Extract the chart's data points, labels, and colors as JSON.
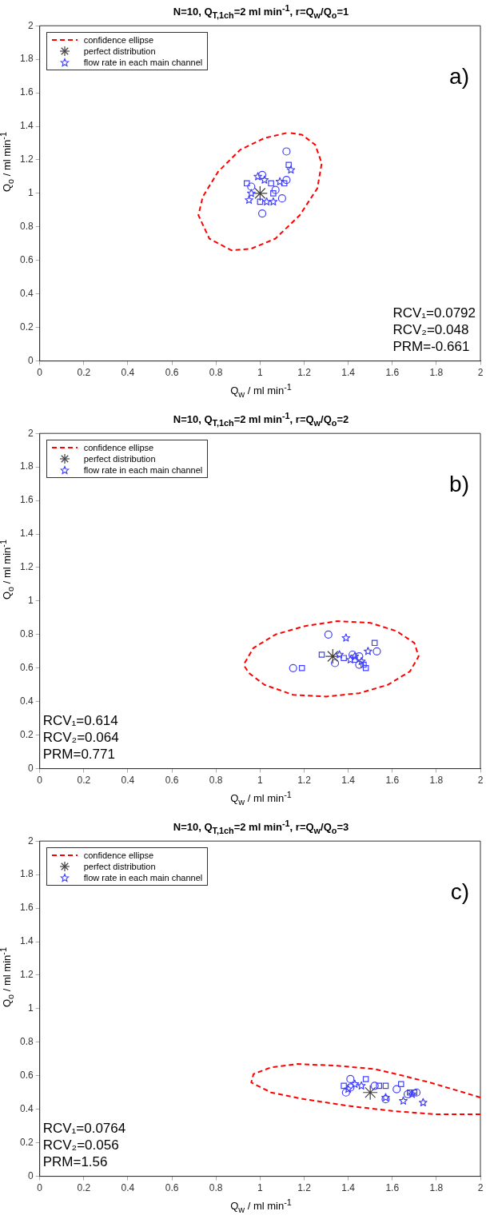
{
  "chart_data": [
    {
      "type": "scatter",
      "title": "N=10, Q$_{T,1ch}$=2 ml min$^{-1}$, r=Q$_{w}$/Q$_{o}$=1",
      "xlabel": "Q$_{w}$ / ml min$^{-1}$",
      "ylabel": "Q$_{o}$ / ml min$^{-1}$",
      "xlim": [
        0,
        2
      ],
      "ylim": [
        0,
        2
      ],
      "xticks": [
        0,
        0.2,
        0.4,
        0.6,
        0.8,
        1,
        1.2,
        1.4,
        1.6,
        1.8,
        2
      ],
      "yticks": [
        0,
        0.2,
        0.4,
        0.6,
        0.8,
        1,
        1.2,
        1.4,
        1.6,
        1.8,
        2
      ],
      "grid": false,
      "legend": "top left",
      "annotations": [
        "a)",
        "RCV₁=0.0792",
        "RCV₂=0.048",
        "PRM=-0.661"
      ],
      "series": [
        {
          "name": "confidence ellipse",
          "type": "line",
          "line_style": "dashed",
          "marker": "none",
          "color": "#ff0000",
          "x": [
            1.12,
            1.02,
            0.91,
            0.81,
            0.74,
            0.72,
            0.77,
            0.87,
            0.96,
            1.07,
            1.18,
            1.26,
            1.28,
            1.25,
            1.19,
            1.14
          ],
          "values": [
            1.36,
            1.33,
            1.26,
            1.13,
            0.98,
            0.87,
            0.73,
            0.66,
            0.67,
            0.73,
            0.87,
            1.03,
            1.18,
            1.29,
            1.35,
            1.36
          ]
        },
        {
          "name": "perfect distribution",
          "type": "scatter",
          "marker": "cross",
          "color": "#404040",
          "x": [
            1
          ],
          "values": [
            1
          ]
        },
        {
          "name": "flow rate in each main channel",
          "type": "scatter",
          "marker": "star",
          "color": "#4040ff",
          "x": [
            1.14,
            1.09,
            0.95,
            0.99,
            1.03,
            1.06,
            0.96,
            1.02
          ],
          "values": [
            1.14,
            1.07,
            0.96,
            1.1,
            0.95,
            0.95,
            1,
            1.08
          ]
        },
        {
          "type": "scatter",
          "marker": "circle",
          "color": "#4040ff",
          "x": [
            1.12,
            1.01,
            1.12,
            1.1,
            1.01,
            0.96,
            1.07
          ],
          "values": [
            1.25,
            0.88,
            1.08,
            0.97,
            1.11,
            1.04,
            1.02
          ]
        },
        {
          "type": "scatter",
          "marker": "square",
          "color": "#4040ff",
          "x": [
            1.13,
            0.94,
            1.05,
            1,
            1.11,
            1.06
          ],
          "values": [
            1.17,
            1.06,
            1.06,
            0.95,
            1.06,
            1
          ]
        }
      ]
    },
    {
      "type": "scatter",
      "title": "N=10, Q$_{T,1ch}$=2 ml min$^{-1}$, r=Q$_{w}$/Q$_{o}$=2",
      "xlabel": "Q$_{w}$ / ml min$^{-1}$",
      "ylabel": "Q$_{o}$ / ml min$^{-1}$",
      "xlim": [
        0,
        2
      ],
      "ylim": [
        0,
        2
      ],
      "xticks": [
        0,
        0.2,
        0.4,
        0.6,
        0.8,
        1,
        1.2,
        1.4,
        1.6,
        1.8,
        2
      ],
      "yticks": [
        0,
        0.2,
        0.4,
        0.6,
        0.8,
        1,
        1.2,
        1.4,
        1.6,
        1.8,
        2
      ],
      "grid": false,
      "legend": "top left",
      "annotations": [
        "b)",
        "RCV₁=0.614",
        "RCV₂=0.064",
        "PRM=0.771"
      ],
      "series": [
        {
          "name": "confidence ellipse",
          "type": "line",
          "line_style": "dashed",
          "marker": "none",
          "color": "#ff0000",
          "x": [
            0.93,
            0.97,
            1.07,
            1.2,
            1.35,
            1.5,
            1.62,
            1.7,
            1.72,
            1.68,
            1.58,
            1.45,
            1.3,
            1.15,
            1.02,
            0.95,
            0.93
          ],
          "values": [
            0.63,
            0.72,
            0.8,
            0.85,
            0.88,
            0.87,
            0.82,
            0.75,
            0.67,
            0.58,
            0.5,
            0.45,
            0.43,
            0.44,
            0.5,
            0.57,
            0.61
          ]
        },
        {
          "name": "perfect distribution",
          "type": "scatter",
          "marker": "cross",
          "color": "#404040",
          "x": [
            1.33
          ],
          "values": [
            0.67
          ]
        },
        {
          "name": "flow rate in each main channel",
          "type": "scatter",
          "marker": "star",
          "color": "#4040ff",
          "x": [
            1.39,
            1.49,
            1.36,
            1.41,
            1.46,
            1.43
          ],
          "values": [
            0.78,
            0.7,
            0.68,
            0.65,
            0.64,
            0.67
          ]
        },
        {
          "type": "scatter",
          "marker": "circle",
          "color": "#4040ff",
          "x": [
            1.31,
            1.53,
            1.15,
            1.42,
            1.45,
            1.45,
            1.34
          ],
          "values": [
            0.8,
            0.7,
            0.6,
            0.68,
            0.67,
            0.62,
            0.63
          ]
        },
        {
          "type": "scatter",
          "marker": "square",
          "color": "#4040ff",
          "x": [
            1.52,
            1.28,
            1.19,
            1.43,
            1.47,
            1.48,
            1.38
          ],
          "values": [
            0.75,
            0.68,
            0.6,
            0.65,
            0.62,
            0.6,
            0.66
          ]
        }
      ]
    },
    {
      "type": "scatter",
      "title": "N=10, Q$_{T,1ch}$=2 ml min$^{-1}$, r=Q$_{w}$/Q$_{o}$=3",
      "xlabel": "Q$_{w}$ / ml min$^{-1}$",
      "ylabel": "Q$_{o}$ / ml min$^{-1}$",
      "xlim": [
        0,
        2
      ],
      "ylim": [
        0,
        2
      ],
      "xticks": [
        0,
        0.2,
        0.4,
        0.6,
        0.8,
        1,
        1.2,
        1.4,
        1.6,
        1.8,
        2
      ],
      "yticks": [
        0,
        0.2,
        0.4,
        0.6,
        0.8,
        1,
        1.2,
        1.4,
        1.6,
        1.8,
        2
      ],
      "grid": false,
      "legend": "top left",
      "annotations": [
        "c)",
        "RCV₁=0.0764",
        "RCV₂=0.056",
        "PRM=1.56"
      ],
      "series": [
        {
          "name": "confidence ellipse",
          "type": "line",
          "line_style": "dashed",
          "marker": "none",
          "color": "#ff0000",
          "x": [
            2,
            1.8,
            1.6,
            1.4,
            1.2,
            1.05,
            0.96,
            0.97,
            1.05,
            1.17,
            1.35,
            1.52,
            1.65,
            1.77,
            1.9,
            2
          ],
          "values": [
            0.37,
            0.37,
            0.39,
            0.42,
            0.46,
            0.5,
            0.56,
            0.61,
            0.65,
            0.67,
            0.66,
            0.64,
            0.6,
            0.56,
            0.51,
            0.47
          ]
        },
        {
          "name": "perfect distribution",
          "type": "scatter",
          "marker": "cross",
          "color": "#404040",
          "x": [
            1.5
          ],
          "values": [
            0.5
          ]
        },
        {
          "name": "flow rate in each main channel",
          "type": "scatter",
          "marker": "star",
          "color": "#4040ff",
          "x": [
            1.46,
            1.57,
            1.65,
            1.74,
            1.4,
            1.43,
            1.69
          ],
          "values": [
            0.54,
            0.47,
            0.45,
            0.44,
            0.52,
            0.55,
            0.49
          ]
        },
        {
          "type": "scatter",
          "marker": "circle",
          "color": "#4040ff",
          "x": [
            1.41,
            1.39,
            1.41,
            1.52,
            1.62,
            1.71,
            1.57,
            1.67
          ],
          "values": [
            0.58,
            0.5,
            0.53,
            0.54,
            0.52,
            0.5,
            0.46,
            0.49
          ]
        },
        {
          "type": "scatter",
          "marker": "square",
          "color": "#4040ff",
          "x": [
            1.48,
            1.38,
            1.54,
            1.57,
            1.64,
            1.68,
            1.7
          ],
          "values": [
            0.58,
            0.54,
            0.54,
            0.54,
            0.55,
            0.5,
            0.5
          ]
        }
      ]
    }
  ]
}
